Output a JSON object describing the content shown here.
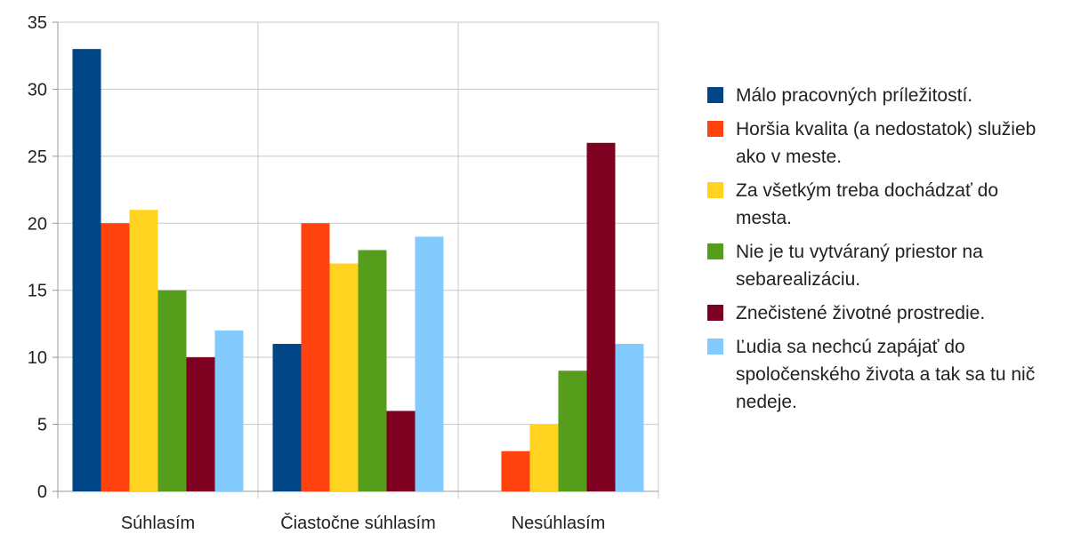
{
  "chart_data": {
    "type": "bar",
    "categories": [
      "Súhlasím",
      "Čiastočne súhlasím",
      "Nesúhlasím"
    ],
    "series": [
      {
        "name": "Málo pracovných príležitostí.",
        "color": "#004586",
        "values": [
          33,
          11,
          0
        ]
      },
      {
        "name": "Horšia kvalita (a nedostatok) služieb ako v meste.",
        "color": "#ff420e",
        "values": [
          20,
          20,
          3
        ]
      },
      {
        "name": "Za všetkým treba dochádzať do mesta.",
        "color": "#ffd320",
        "values": [
          21,
          17,
          5
        ]
      },
      {
        "name": "Nie je tu vytváraný priestor na sebarealizáciu.",
        "color": "#579d1c",
        "values": [
          15,
          18,
          9
        ]
      },
      {
        "name": "Znečistené životné prostredie.",
        "color": "#7e0021",
        "values": [
          10,
          6,
          26
        ]
      },
      {
        "name": "Ľudia sa nechcú zapájať do spoločenského života a tak sa tu nič nedeje.",
        "color": "#83caff",
        "values": [
          12,
          19,
          11
        ]
      }
    ],
    "ylim": [
      0,
      35
    ],
    "yticks": [
      0,
      5,
      10,
      15,
      20,
      25,
      30,
      35
    ],
    "grid": true,
    "legend": "right"
  }
}
